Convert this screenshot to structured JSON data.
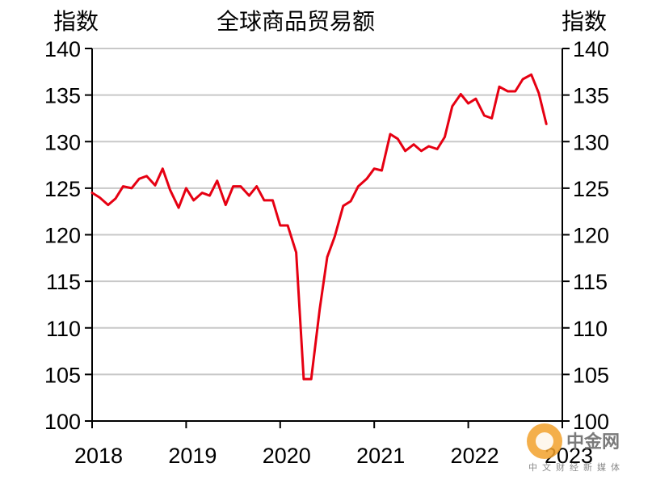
{
  "chart_data": {
    "type": "line",
    "title": "全球商品贸易额",
    "ylabel_left": "指数",
    "ylabel_right": "指数",
    "ylim": [
      100,
      140
    ],
    "yticks": [
      100,
      105,
      110,
      115,
      120,
      125,
      130,
      135,
      140
    ],
    "xlim": [
      2018.0,
      2023.0
    ],
    "xticks": [
      "2018",
      "2019",
      "2020",
      "2021",
      "2022",
      "2023"
    ],
    "grid": true,
    "series": [
      {
        "color": "#e60012",
        "x": [
          2018.0,
          2018.08,
          2018.17,
          2018.25,
          2018.33,
          2018.42,
          2018.5,
          2018.58,
          2018.67,
          2018.75,
          2018.83,
          2018.92,
          2019.0,
          2019.08,
          2019.17,
          2019.25,
          2019.33,
          2019.42,
          2019.5,
          2019.58,
          2019.67,
          2019.75,
          2019.83,
          2019.92,
          2020.0,
          2020.08,
          2020.17,
          2020.25,
          2020.33,
          2020.42,
          2020.5,
          2020.58,
          2020.67,
          2020.75,
          2020.83,
          2020.92,
          2021.0,
          2021.08,
          2021.17,
          2021.25,
          2021.33,
          2021.42,
          2021.5,
          2021.58,
          2021.67,
          2021.75,
          2021.83,
          2021.92,
          2022.0,
          2022.08,
          2022.17,
          2022.25,
          2022.33,
          2022.42,
          2022.5,
          2022.58,
          2022.67,
          2022.75,
          2022.83
        ],
        "values": [
          124.5,
          124.0,
          123.2,
          123.9,
          125.2,
          125.0,
          126.0,
          126.3,
          125.3,
          127.1,
          124.8,
          122.9,
          125.0,
          123.7,
          124.5,
          124.2,
          125.8,
          123.2,
          125.2,
          125.2,
          124.2,
          125.2,
          123.7,
          123.7,
          121.0,
          121.0,
          118.1,
          104.5,
          104.5,
          112.0,
          117.6,
          119.8,
          123.1,
          123.6,
          125.2,
          126.0,
          127.1,
          126.9,
          130.8,
          130.3,
          129.0,
          129.7,
          129.0,
          129.5,
          129.2,
          130.5,
          133.8,
          135.1,
          134.1,
          134.6,
          132.8,
          132.5,
          135.9,
          135.4,
          135.4,
          136.7,
          137.2,
          135.2,
          131.9
        ]
      }
    ]
  }
}
